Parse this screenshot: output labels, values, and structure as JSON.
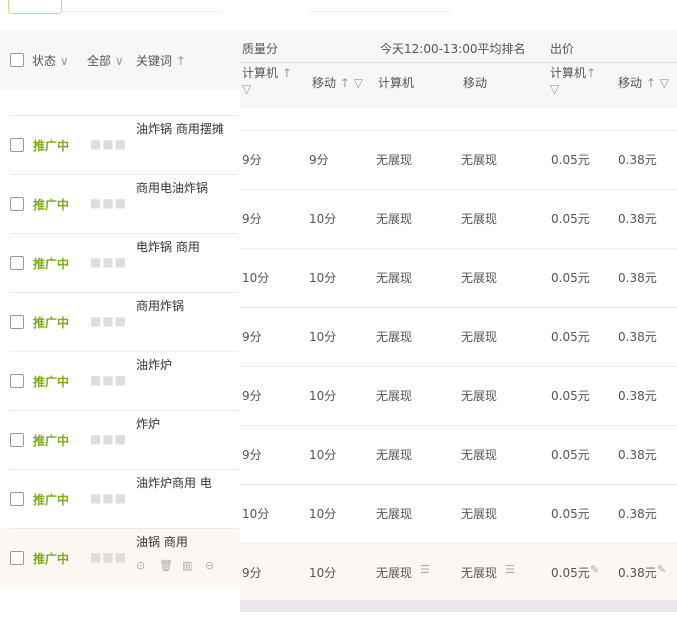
{
  "header": {
    "status": "状态",
    "all": "全部",
    "keyword": "关键词",
    "quality": "质量分",
    "rank": "今天12:00-13:00平均排名",
    "bid": "出价",
    "pc": "计算机",
    "mobile": "移动"
  },
  "rows": [
    {
      "status": "推广中",
      "keyword": "油炸锅 商用摆摊",
      "q_pc": "9分",
      "q_mobile": "9分",
      "r_pc": "无展现",
      "r_mobile": "无展现",
      "b_pc": "0.05元",
      "b_mobile": "0.38元"
    },
    {
      "status": "推广中",
      "keyword": "商用电油炸锅",
      "q_pc": "9分",
      "q_mobile": "10分",
      "r_pc": "无展现",
      "r_mobile": "无展现",
      "b_pc": "0.05元",
      "b_mobile": "0.38元"
    },
    {
      "status": "推广中",
      "keyword": "电炸锅 商用",
      "q_pc": "10分",
      "q_mobile": "10分",
      "r_pc": "无展现",
      "r_mobile": "无展现",
      "b_pc": "0.05元",
      "b_mobile": "0.38元"
    },
    {
      "status": "推广中",
      "keyword": "商用炸锅",
      "q_pc": "9分",
      "q_mobile": "10分",
      "r_pc": "无展现",
      "r_mobile": "无展现",
      "b_pc": "0.05元",
      "b_mobile": "0.38元"
    },
    {
      "status": "推广中",
      "keyword": "油炸炉",
      "q_pc": "9分",
      "q_mobile": "10分",
      "r_pc": "无展现",
      "r_mobile": "无展现",
      "b_pc": "0.05元",
      "b_mobile": "0.38元"
    },
    {
      "status": "推广中",
      "keyword": "炸炉",
      "q_pc": "9分",
      "q_mobile": "10分",
      "r_pc": "无展现",
      "r_mobile": "无展现",
      "b_pc": "0.05元",
      "b_mobile": "0.38元"
    },
    {
      "status": "推广中",
      "keyword": "油炸炉商用 电",
      "q_pc": "10分",
      "q_mobile": "10分",
      "r_pc": "无展现",
      "r_mobile": "无展现",
      "b_pc": "0.05元",
      "b_mobile": "0.38元"
    },
    {
      "status": "推广中",
      "keyword": "油锅 商用",
      "q_pc": "9分",
      "q_mobile": "10分",
      "r_pc": "无展现",
      "r_mobile": "无展现",
      "b_pc": "0.05元",
      "b_mobile": "0.38元"
    }
  ],
  "hover_row": 7,
  "colors": {
    "status": "#7cad16",
    "header_bg": "#f7f7f7",
    "hover_bg": "#fbf7f2"
  }
}
